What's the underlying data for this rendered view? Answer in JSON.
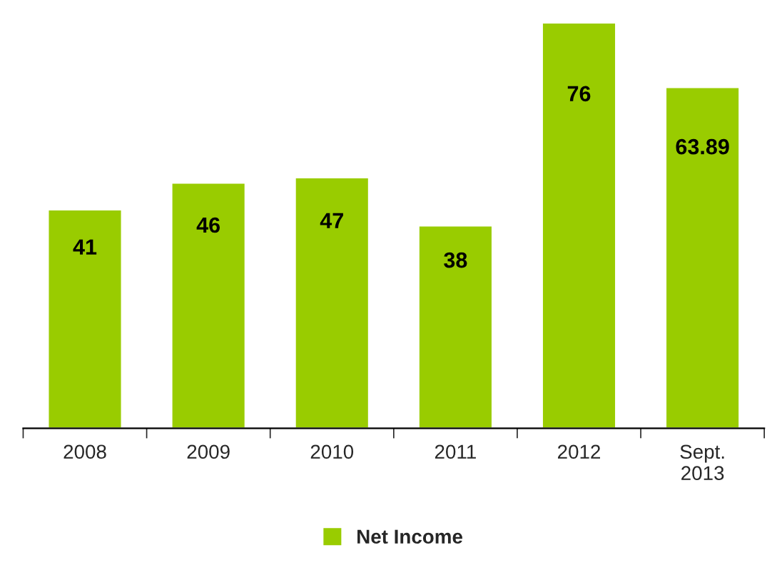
{
  "chart_data": {
    "type": "bar",
    "categories": [
      "2008",
      "2009",
      "2010",
      "2011",
      "2012",
      "Sept.\n2013"
    ],
    "series": [
      {
        "name": "Net Income",
        "color": "#99cc00",
        "values": [
          41,
          46,
          47,
          38,
          76,
          63.89
        ]
      }
    ],
    "data_labels": true,
    "legend": "bottom",
    "grid": false
  }
}
